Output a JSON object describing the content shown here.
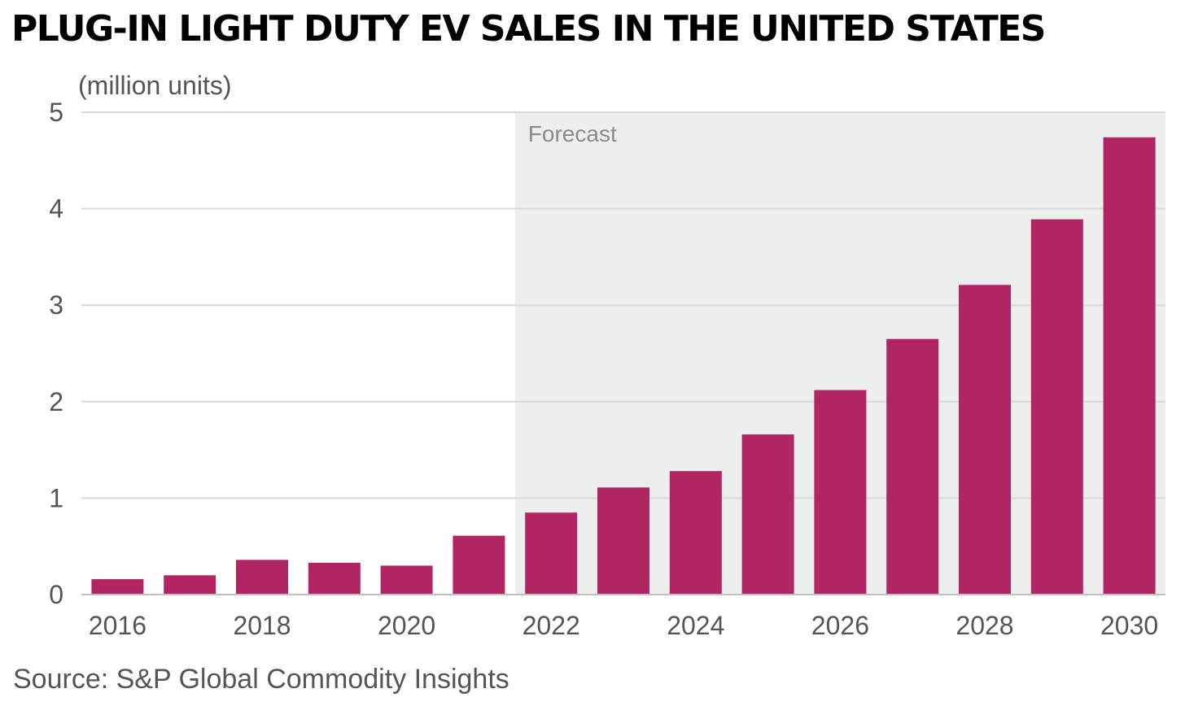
{
  "title": "PLUG-IN LIGHT DUTY EV SALES IN THE UNITED STATES",
  "source": "Source: S&P Global Commodity Insights",
  "chart_data": {
    "type": "bar",
    "title": "PLUG-IN LIGHT DUTY EV SALES IN THE UNITED STATES",
    "ylabel": "(million units)",
    "xlabel": "",
    "categories": [
      "2016",
      "2017",
      "2018",
      "2019",
      "2020",
      "2021",
      "2022",
      "2023",
      "2024",
      "2025",
      "2026",
      "2027",
      "2028",
      "2029",
      "2030"
    ],
    "values": [
      0.16,
      0.2,
      0.36,
      0.33,
      0.3,
      0.61,
      0.85,
      1.11,
      1.28,
      1.66,
      2.12,
      2.65,
      3.21,
      3.89,
      4.74
    ],
    "x_tick_labels": [
      "2016",
      "2018",
      "2020",
      "2022",
      "2024",
      "2026",
      "2028",
      "2030"
    ],
    "y_ticks": [
      0,
      1,
      2,
      3,
      4,
      5
    ],
    "ylim": [
      0,
      5
    ],
    "grid": true,
    "forecast_label": "Forecast",
    "forecast_start": "2022",
    "colors": {
      "bar": "#b22563",
      "forecast_bg": "#edeeee",
      "grid": "#d9d9d9",
      "axis": "#bfbfbf"
    }
  }
}
